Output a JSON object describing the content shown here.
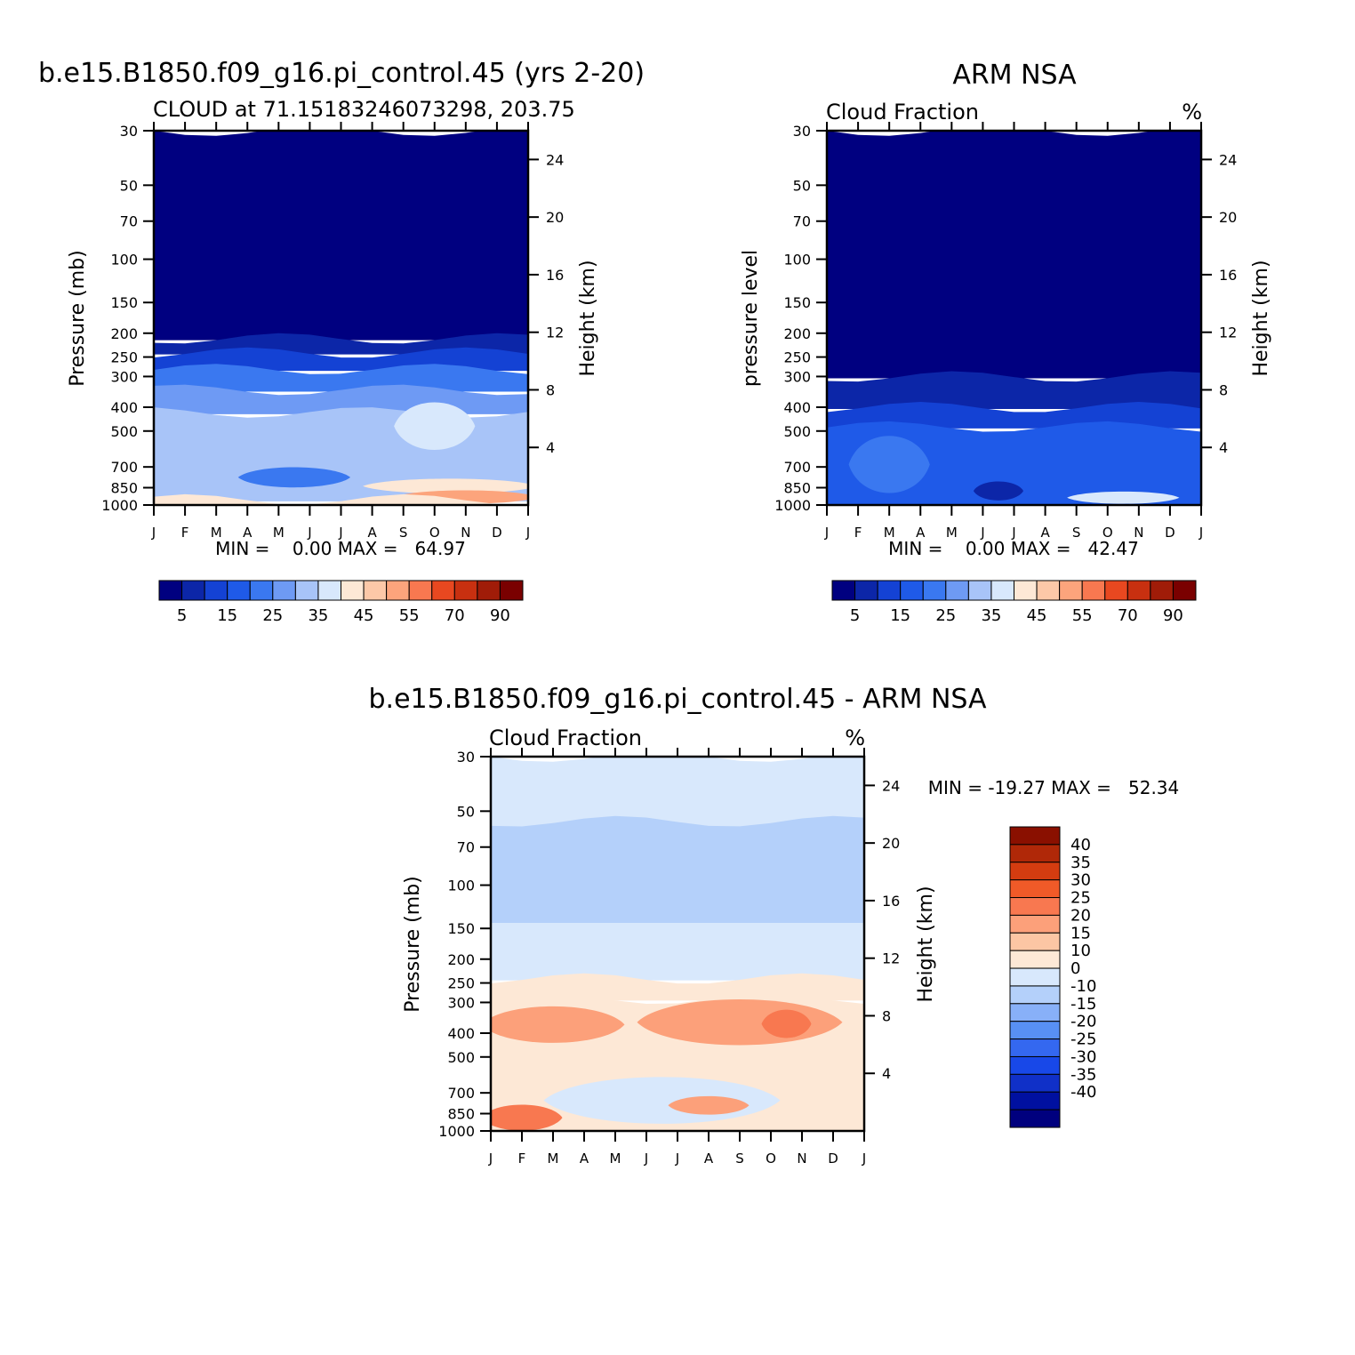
{
  "colors": {
    "seq": [
      "#000080",
      "#0c26a8",
      "#1442d4",
      "#1f5ae8",
      "#3a78f0",
      "#6e9af4",
      "#a8c4f8",
      "#d8e8fc",
      "#fde8d6",
      "#fcc8a8",
      "#fca47c",
      "#f87850",
      "#e84820",
      "#c83010",
      "#a01c08",
      "#7a0000"
    ],
    "diff": [
      "#00007e",
      "#0010a0",
      "#1030c8",
      "#1848e8",
      "#3468f0",
      "#5890f4",
      "#88b0f8",
      "#b4d0fa",
      "#d8e8fc",
      "#fde8d6",
      "#fcc6a4",
      "#fca07a",
      "#f87850",
      "#f05a28",
      "#d43c10",
      "#b02808",
      "#8a1000"
    ],
    "axis": "#000000"
  },
  "panels": [
    {
      "id": "model",
      "suptitle": "b.e15.B1850.f09_g16.pi_control.45 (yrs 2-20)",
      "left_label": "CLOUD at 71.15183246073298, 203.75",
      "right_label": "",
      "ylabel": "Pressure (mb)",
      "ylabel2": "Height (km)",
      "stats": "MIN =    0.00 MAX =   64.97"
    },
    {
      "id": "obs",
      "suptitle": "ARM NSA",
      "left_label": "Cloud Fraction",
      "right_label": "%",
      "ylabel": "pressure level",
      "ylabel2": "Height (km)",
      "stats": "MIN =    0.00 MAX =   42.47"
    },
    {
      "id": "diff",
      "suptitle": "b.e15.B1850.f09_g16.pi_control.45 - ARM NSA",
      "left_label": "Cloud Fraction",
      "right_label": "%",
      "ylabel": "Pressure (mb)",
      "ylabel2": "Height (km)",
      "stats": "MIN = -19.27 MAX =   52.34"
    }
  ],
  "chart_data": [
    {
      "type": "heatmap",
      "title": "b.e15.B1850.f09_g16.pi_control.45 (yrs 2-20)",
      "subtitle": "CLOUD at 71.15183246073298, 203.75",
      "units": "%",
      "x_ticks": [
        "J",
        "F",
        "M",
        "A",
        "M",
        "J",
        "J",
        "A",
        "S",
        "O",
        "N",
        "D",
        "J"
      ],
      "y_ticks_pressure_mb": [
        30,
        50,
        70,
        100,
        150,
        200,
        250,
        300,
        400,
        500,
        700,
        850,
        1000
      ],
      "y2_ticks_height_km": [
        4,
        8,
        12,
        16,
        20,
        24
      ],
      "zones": [
        {
          "pressure_range_mb": [
            30,
            210
          ],
          "value": 2
        },
        {
          "pressure_range_mb": [
            210,
            240
          ],
          "value": 8
        },
        {
          "pressure_range_mb": [
            240,
            280
          ],
          "value": 12
        },
        {
          "pressure_range_mb": [
            280,
            340
          ],
          "value": 22
        },
        {
          "pressure_range_mb": [
            340,
            420
          ],
          "value": 28
        },
        {
          "pressure_range_mb": [
            420,
            950
          ],
          "value": 33
        },
        {
          "pressure_range_mb": [
            700,
            850
          ],
          "value": 22,
          "months": "Apr-Jun"
        },
        {
          "pressure_range_mb": [
            380,
            600
          ],
          "value": 38,
          "months": "Sep-Oct"
        },
        {
          "pressure_range_mb": [
            780,
            900
          ],
          "value": 42,
          "months": "Aug-Dec"
        },
        {
          "pressure_range_mb": [
            870,
            990
          ],
          "value": 50,
          "months": "Sep-Dec"
        },
        {
          "pressure_range_mb": [
            950,
            1000
          ],
          "value": 40
        }
      ],
      "min": 0.0,
      "max": 64.97,
      "colorbar_levels": [
        5,
        10,
        15,
        20,
        25,
        30,
        35,
        40,
        45,
        50,
        55,
        60,
        70,
        80,
        90
      ],
      "colorbar_labels": [
        "5",
        "15",
        "25",
        "35",
        "45",
        "55",
        "70",
        "90"
      ]
    },
    {
      "type": "heatmap",
      "title": "ARM NSA",
      "subtitle": "Cloud Fraction",
      "units": "%",
      "x_ticks": [
        "J",
        "F",
        "M",
        "A",
        "M",
        "J",
        "J",
        "A",
        "S",
        "O",
        "N",
        "D",
        "J"
      ],
      "y_ticks_pressure_mb": [
        30,
        50,
        70,
        100,
        150,
        200,
        250,
        300,
        400,
        500,
        700,
        850,
        1000
      ],
      "y2_ticks_height_km": [
        4,
        8,
        12,
        16,
        20,
        24
      ],
      "zones": [
        {
          "pressure_range_mb": [
            30,
            300
          ],
          "value": 2
        },
        {
          "pressure_range_mb": [
            300,
            400
          ],
          "value": 8
        },
        {
          "pressure_range_mb": [
            400,
            480
          ],
          "value": 12
        },
        {
          "pressure_range_mb": [
            480,
            1000
          ],
          "value": 18
        },
        {
          "pressure_range_mb": [
            520,
            900
          ],
          "value": 22,
          "months": "Feb-Mar, Jul-Dec"
        },
        {
          "pressure_range_mb": [
            800,
            960
          ],
          "value": 8,
          "months": "Jun"
        },
        {
          "pressure_range_mb": [
            880,
            990
          ],
          "value": 35,
          "months": "Sep-Nov"
        }
      ],
      "min": 0.0,
      "max": 42.47,
      "colorbar_levels": [
        5,
        10,
        15,
        20,
        25,
        30,
        35,
        40,
        45,
        50,
        55,
        60,
        70,
        80,
        90
      ],
      "colorbar_labels": [
        "5",
        "15",
        "25",
        "35",
        "45",
        "55",
        "70",
        "90"
      ]
    },
    {
      "type": "heatmap",
      "title": "b.e15.B1850.f09_g16.pi_control.45 - ARM NSA",
      "subtitle": "Cloud Fraction",
      "units": "%",
      "x_ticks": [
        "J",
        "F",
        "M",
        "A",
        "M",
        "J",
        "J",
        "A",
        "S",
        "O",
        "N",
        "D",
        "J"
      ],
      "y_ticks_pressure_mb": [
        30,
        50,
        70,
        100,
        150,
        200,
        250,
        300,
        400,
        500,
        700,
        850,
        1000
      ],
      "y2_ticks_height_km": [
        4,
        8,
        12,
        16,
        20,
        24
      ],
      "zones": [
        {
          "pressure_range_mb": [
            30,
            240
          ],
          "value": 3
        },
        {
          "pressure_range_mb": [
            55,
            140
          ],
          "value": -4
        },
        {
          "pressure_range_mb": [
            240,
            290
          ],
          "value": 12
        },
        {
          "pressure_range_mb": [
            290,
            1000
          ],
          "value": 13
        },
        {
          "pressure_range_mb": [
            310,
            440
          ],
          "value": 22,
          "months": "Jan-Apr"
        },
        {
          "pressure_range_mb": [
            290,
            450
          ],
          "value": 22,
          "months": "Jun-Nov"
        },
        {
          "pressure_range_mb": [
            320,
            420
          ],
          "value": 28,
          "months": "Oct"
        },
        {
          "pressure_range_mb": [
            600,
            940
          ],
          "value": 5,
          "months": "Mar-Sep"
        },
        {
          "pressure_range_mb": [
            720,
            860
          ],
          "value": 22,
          "months": "Jul-Aug"
        },
        {
          "pressure_range_mb": [
            780,
            1000
          ],
          "value": 28,
          "months": "Jan-Feb"
        }
      ],
      "min": -19.27,
      "max": 52.34,
      "colorbar_levels": [
        -40,
        -35,
        -30,
        -25,
        -20,
        -15,
        -10,
        0,
        10,
        15,
        20,
        25,
        30,
        35,
        40
      ],
      "colorbar_labels": [
        "40",
        "35",
        "30",
        "25",
        "20",
        "15",
        "10",
        "0",
        "-10",
        "-15",
        "-20",
        "-25",
        "-30",
        "-35",
        "-40"
      ]
    }
  ]
}
